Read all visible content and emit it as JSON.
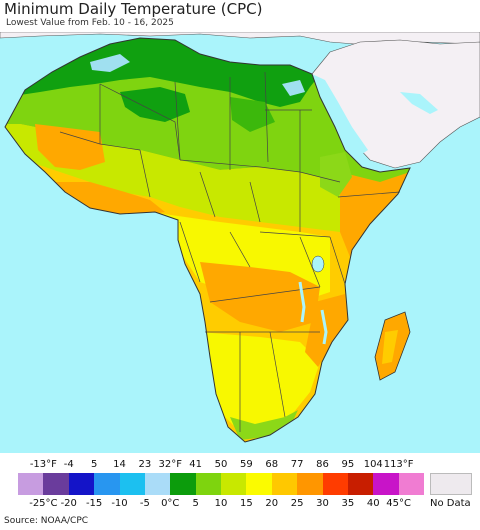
{
  "header": {
    "title": "Minimum Daily Temperature (CPC)",
    "subtitle": "Lowest Value from Feb. 10 - 16, 2025"
  },
  "map": {
    "region": "Africa",
    "ocean_color": "#aaf4fb",
    "land_outside_color": "#f4f0f4",
    "zones": [
      {
        "name": "north-green",
        "color": "#10a010"
      },
      {
        "name": "sahara-lime",
        "color": "#7fd410"
      },
      {
        "name": "sahel-yellow-green",
        "color": "#c8e800"
      },
      {
        "name": "yellow",
        "color": "#f8f800"
      },
      {
        "name": "gold",
        "color": "#ffcc00"
      },
      {
        "name": "orange",
        "color": "#ffa800"
      },
      {
        "name": "cold-cyan",
        "color": "#a0e0f0"
      }
    ]
  },
  "legend": {
    "fahrenheit_labels": [
      "-13°F",
      "-4",
      "5",
      "14",
      "23",
      "32°F",
      "41",
      "50",
      "59",
      "68",
      "77",
      "86",
      "95",
      "104",
      "113°F"
    ],
    "celsius_labels": [
      "-25°C",
      "-20",
      "-15",
      "-10",
      "-5",
      "0°C",
      "5",
      "10",
      "15",
      "20",
      "25",
      "30",
      "35",
      "40",
      "45°C"
    ],
    "colors": [
      "#c79ce0",
      "#6a3c9c",
      "#1414c8",
      "#2896f0",
      "#1cc0f0",
      "#aadcf8",
      "#0c9c0c",
      "#7ed40e",
      "#c8e800",
      "#fbfb00",
      "#ffc800",
      "#ff9600",
      "#ff3c00",
      "#c81e00",
      "#c814c8",
      "#f07cd2"
    ],
    "no_data_label": "No Data",
    "no_data_color": "#eeeaee"
  },
  "footer": {
    "source": "Source: NOAA/CPC"
  }
}
